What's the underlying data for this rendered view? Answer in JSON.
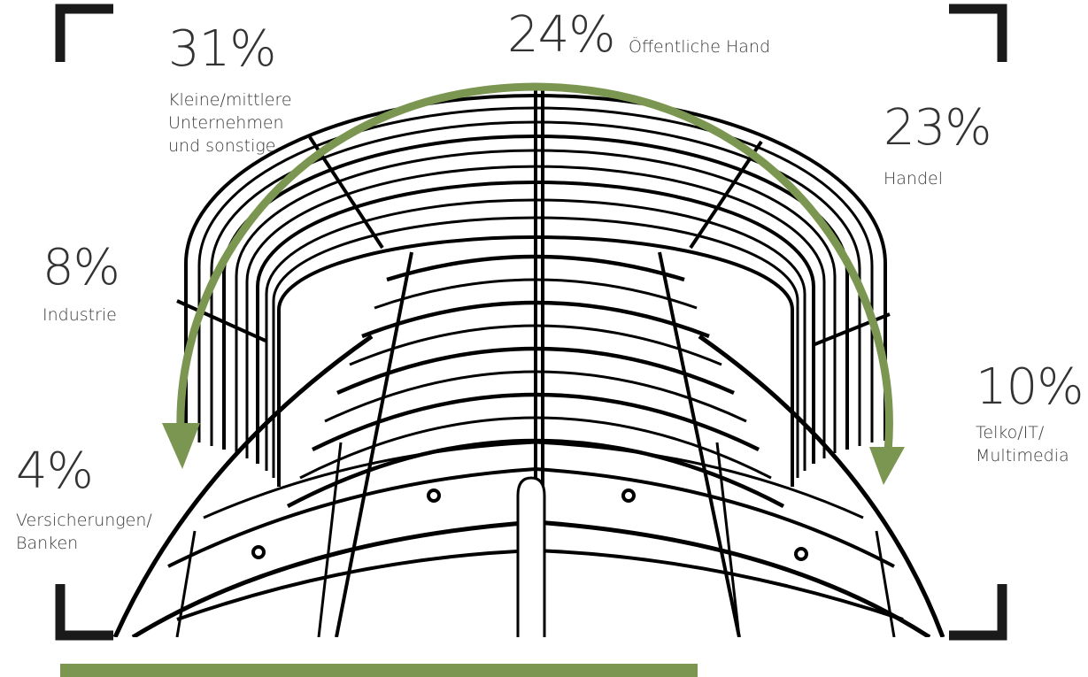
{
  "colors": {
    "accent": "#7b9651",
    "bracket": "#1a1a1a",
    "ink": "#000000"
  },
  "chart_data": {
    "type": "pie",
    "arrangement": "labels arranged around an arc over a tower illustration",
    "slices": [
      {
        "pct_label": "4%",
        "value": 4,
        "label_lines": [
          "Versicherungen/",
          "Banken"
        ]
      },
      {
        "pct_label": "8%",
        "value": 8,
        "label_lines": [
          "Industrie"
        ]
      },
      {
        "pct_label": "31%",
        "value": 31,
        "label_lines": [
          "Kleine/mittlere",
          "Unternehmen",
          "und sonstige"
        ]
      },
      {
        "pct_label": "24%",
        "value": 24,
        "label_lines": [
          "Öffentliche Hand"
        ]
      },
      {
        "pct_label": "23%",
        "value": 23,
        "label_lines": [
          "Handel"
        ]
      },
      {
        "pct_label": "10%",
        "value": 10,
        "label_lines": [
          "Telko/IT/",
          "Multimedia"
        ]
      }
    ]
  }
}
